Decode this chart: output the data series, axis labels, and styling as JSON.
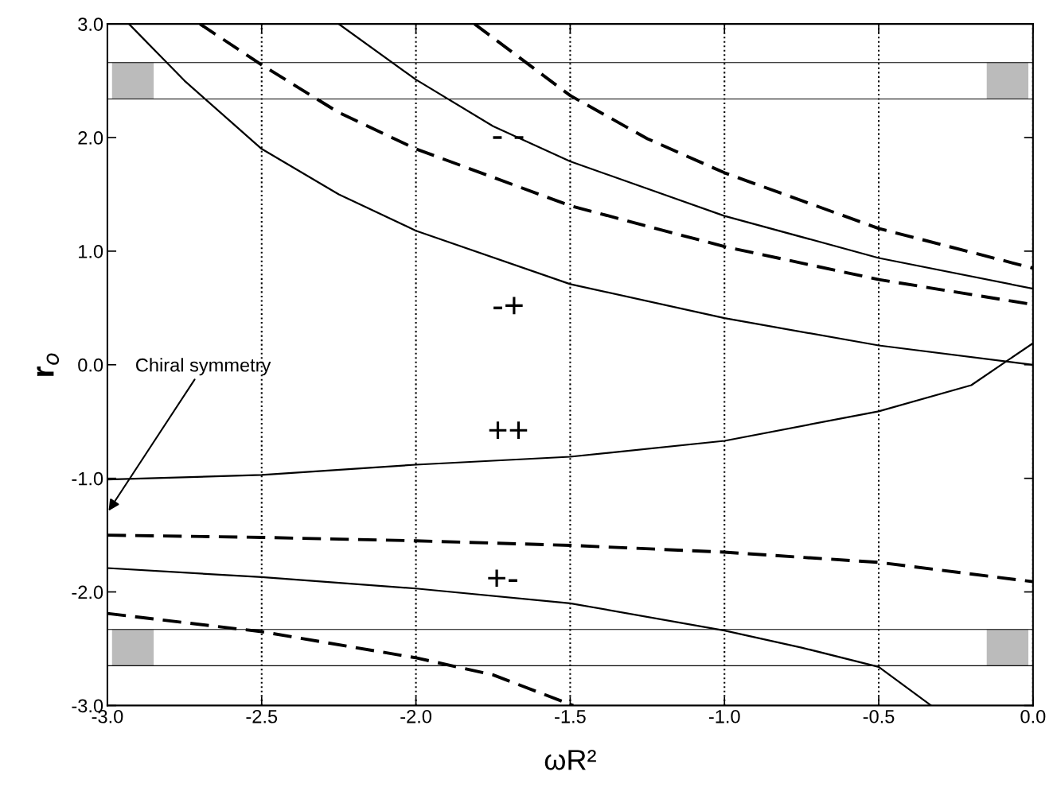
{
  "chart_data": {
    "type": "line",
    "xlabel": "ωR²",
    "ylabel": "r$_{o}$",
    "xlim": [
      -3,
      0
    ],
    "ylim": [
      -3,
      3
    ],
    "xticks": [
      {
        "value": -3,
        "label": "-3.0"
      },
      {
        "value": -2.5,
        "label": "-2.5"
      },
      {
        "value": -2,
        "label": "-2.0"
      },
      {
        "value": -1.5,
        "label": "-1.5"
      },
      {
        "value": -1,
        "label": "-1.0"
      },
      {
        "value": -0.5,
        "label": "-0.5"
      },
      {
        "value": 0,
        "label": "0.0"
      }
    ],
    "yticks": [
      {
        "value": -3,
        "label": "-3.0"
      },
      {
        "value": -2,
        "label": "-2.0"
      },
      {
        "value": -1,
        "label": "-1.0"
      },
      {
        "value": 0,
        "label": "0.0"
      },
      {
        "value": 1,
        "label": "1.0"
      },
      {
        "value": 2,
        "label": "2.0"
      },
      {
        "value": 3,
        "label": "3.0"
      }
    ],
    "grid": "x",
    "marker": "none",
    "series": [
      {
        "color": "#000000",
        "line_style": "solid",
        "x": [
          -2.93,
          -2.75,
          -2.5,
          -2.25,
          -2.0,
          -1.5,
          -1.0,
          -0.5,
          0
        ],
        "values": [
          3.0,
          2.5,
          1.9,
          1.5,
          1.18,
          0.71,
          0.41,
          0.17,
          0.0
        ]
      },
      {
        "color": "#000000",
        "line_style": "solid",
        "x": [
          -2.25,
          -2.0,
          -1.75,
          -1.5,
          -1.0,
          -0.5,
          0
        ],
        "values": [
          3.0,
          2.51,
          2.1,
          1.79,
          1.31,
          0.94,
          0.67
        ]
      },
      {
        "color": "#000000",
        "line_style": "dashed",
        "x": [
          -2.7,
          -2.5,
          -2.25,
          -2.0,
          -1.5,
          -1.0,
          -0.5,
          0
        ],
        "values": [
          3.0,
          2.64,
          2.22,
          1.9,
          1.4,
          1.04,
          0.75,
          0.53
        ]
      },
      {
        "color": "#000000",
        "line_style": "dashed",
        "x": [
          -1.81,
          -1.5,
          -1.25,
          -1.0,
          -0.5,
          0
        ],
        "values": [
          3.0,
          2.37,
          1.99,
          1.69,
          1.2,
          0.85
        ]
      },
      {
        "color": "#000000",
        "line_style": "solid",
        "x": [
          -3.0,
          -2.5,
          -2.0,
          -1.5,
          -1.0,
          -0.5,
          -0.2,
          0
        ],
        "values": [
          -1.01,
          -0.97,
          -0.88,
          -0.81,
          -0.67,
          -0.41,
          -0.18,
          0.19
        ]
      },
      {
        "color": "#000000",
        "line_style": "dashed",
        "x": [
          -3.0,
          -2.5,
          -2.0,
          -1.5,
          -1.0,
          -0.5,
          0
        ],
        "values": [
          -1.5,
          -1.52,
          -1.55,
          -1.59,
          -1.65,
          -1.74,
          -1.91
        ]
      },
      {
        "color": "#000000",
        "line_style": "solid",
        "x": [
          -3.0,
          -2.5,
          -2.0,
          -1.5,
          -1.0,
          -0.75,
          -0.5,
          -0.33
        ],
        "values": [
          -1.79,
          -1.87,
          -1.97,
          -2.1,
          -2.34,
          -2.49,
          -2.66,
          -3.0
        ]
      },
      {
        "color": "#000000",
        "line_style": "dashed",
        "x": [
          -3.0,
          -2.5,
          -2.0,
          -1.75,
          -1.49
        ],
        "values": [
          -2.19,
          -2.35,
          -2.58,
          -2.73,
          -3.0
        ]
      }
    ],
    "bands": [
      {
        "axis": "y",
        "from": 2.34,
        "to": 2.66,
        "color": "#bbbbbb"
      },
      {
        "axis": "y",
        "from": -2.65,
        "to": -2.33,
        "color": "#bbbbbb"
      }
    ],
    "annotations": [
      "- -",
      "-+",
      "++",
      "+-",
      "Chiral symmetry"
    ]
  }
}
